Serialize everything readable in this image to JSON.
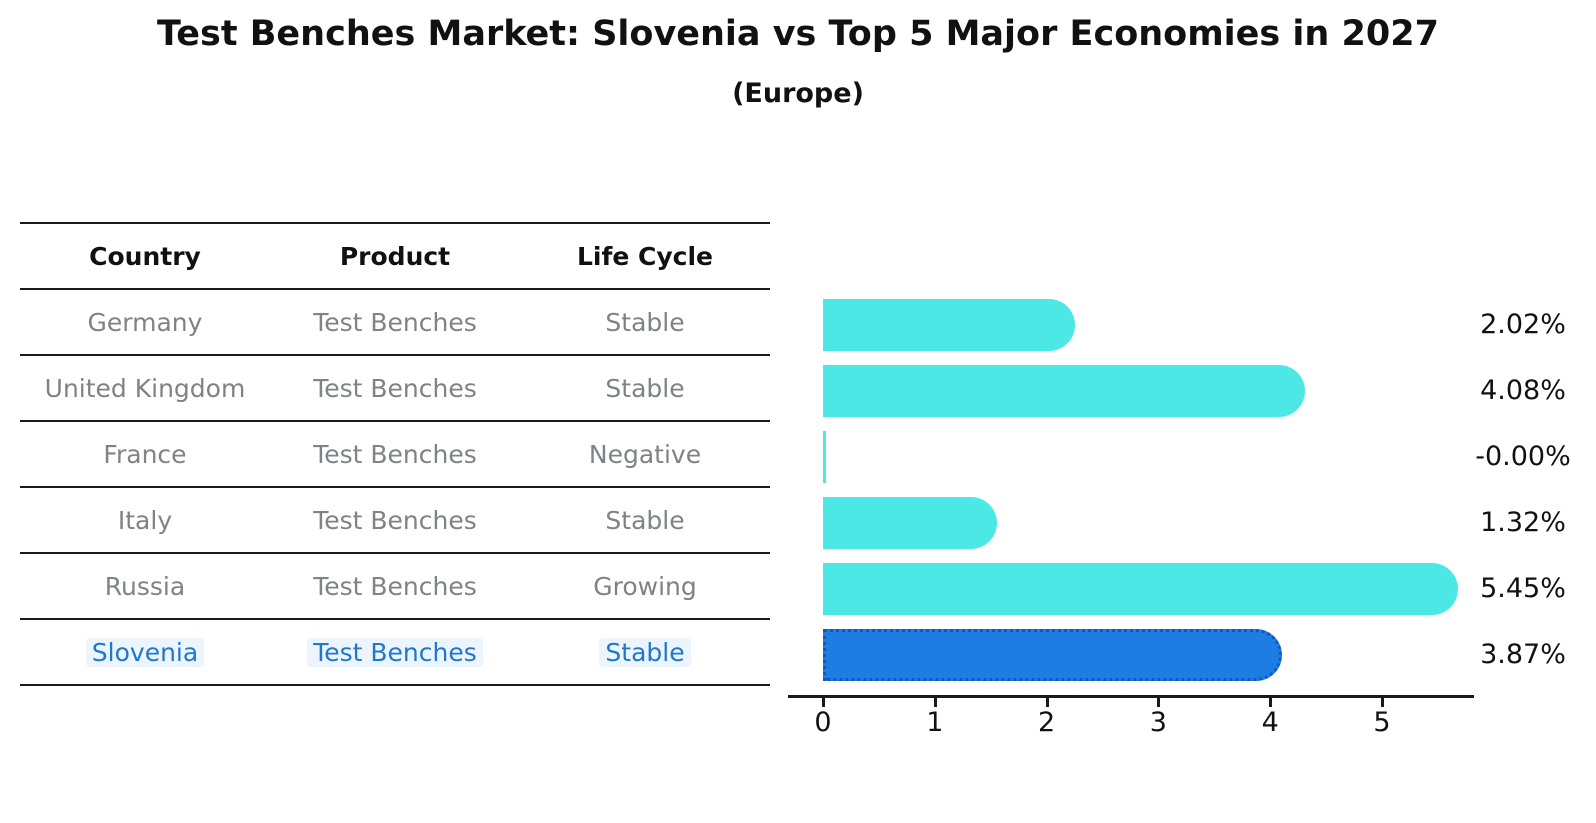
{
  "header": {
    "title": "Test Benches Market: Slovenia vs Top 5 Major Economies in 2027",
    "subtitle": "(Europe)"
  },
  "table": {
    "columns": [
      "Country",
      "Product",
      "Life Cycle"
    ],
    "rows": [
      {
        "country": "Germany",
        "product": "Test Benches",
        "life_cycle": "Stable",
        "highlight": false
      },
      {
        "country": "United Kingdom",
        "product": "Test Benches",
        "life_cycle": "Stable",
        "highlight": false
      },
      {
        "country": "France",
        "product": "Test Benches",
        "life_cycle": "Negative",
        "highlight": false
      },
      {
        "country": "Italy",
        "product": "Test Benches",
        "life_cycle": "Stable",
        "highlight": false
      },
      {
        "country": "Russia",
        "product": "Test Benches",
        "life_cycle": "Growing",
        "highlight": false
      },
      {
        "country": "Slovenia",
        "product": "Test Benches",
        "life_cycle": "Stable",
        "highlight": true
      }
    ]
  },
  "chart_data": {
    "type": "bar",
    "orientation": "horizontal",
    "title": "Test Benches Market: Slovenia vs Top 5 Major Economies in 2027",
    "subtitle": "(Europe)",
    "categories": [
      "Germany",
      "United Kingdom",
      "France",
      "Italy",
      "Russia",
      "Slovenia"
    ],
    "values": [
      2.02,
      4.08,
      -0.0,
      1.32,
      5.45,
      3.87
    ],
    "value_labels": [
      "2.02%",
      "4.08%",
      "-0.00%",
      "1.32%",
      "5.45%",
      "3.87%"
    ],
    "xlabel": "",
    "ylabel": "",
    "xticks": [
      0,
      1,
      2,
      3,
      4,
      5
    ],
    "xlim": [
      0,
      5.8
    ],
    "grid": false,
    "legend": false,
    "highlight_category": "Slovenia",
    "colors": {
      "bar": "#4be8e6",
      "highlight_bar": "#1e7de2",
      "highlight_bar_border": "#1456bc",
      "highlight_text": "#1f78cc",
      "cell_text": "#7f8287",
      "line": "#1a1a1a",
      "label_text": "#111111"
    }
  }
}
